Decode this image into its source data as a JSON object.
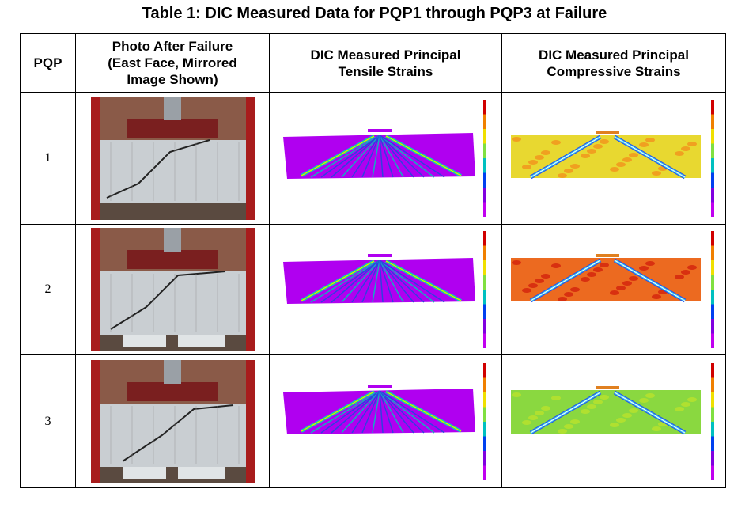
{
  "title": "Table 1: DIC Measured Data for PQP1 through PQP3 at Failure",
  "table": {
    "header": [
      "PQP",
      "Photo After Failure (East Face, Mirrored Image Shown)",
      "DIC Measured Principal Tensile Strains",
      "DIC Measured Principal Compressive Strains"
    ],
    "rows": [
      [
        "1"
      ],
      [
        "2"
      ],
      [
        "3"
      ]
    ]
  }
}
